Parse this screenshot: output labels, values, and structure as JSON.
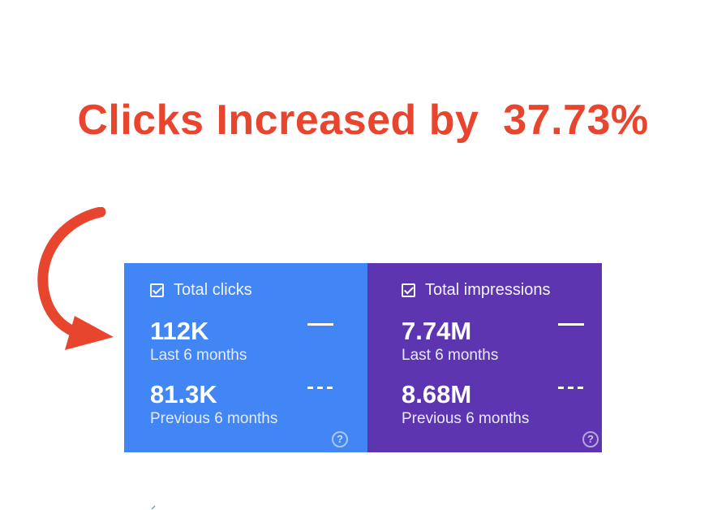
{
  "headline": {
    "text": "Clicks Increased by  37.73%",
    "color": "#e8452f"
  },
  "arrow": {
    "icon": "curved-arrow-icon",
    "color": "#e8452f"
  },
  "panels": {
    "clicks": {
      "bg_color": "#4285f4",
      "label": "Total clicks",
      "current_value": "112K",
      "current_period": "Last 6 months",
      "previous_value": "81.3K",
      "previous_period": "Previous 6 months",
      "help_glyph": "?"
    },
    "impressions": {
      "bg_color": "#5e35b1",
      "label": "Total impressions",
      "current_value": "7.74M",
      "current_period": "Last 6 months",
      "previous_value": "8.68M",
      "previous_period": "Previous 6 months",
      "help_glyph": "?"
    }
  }
}
